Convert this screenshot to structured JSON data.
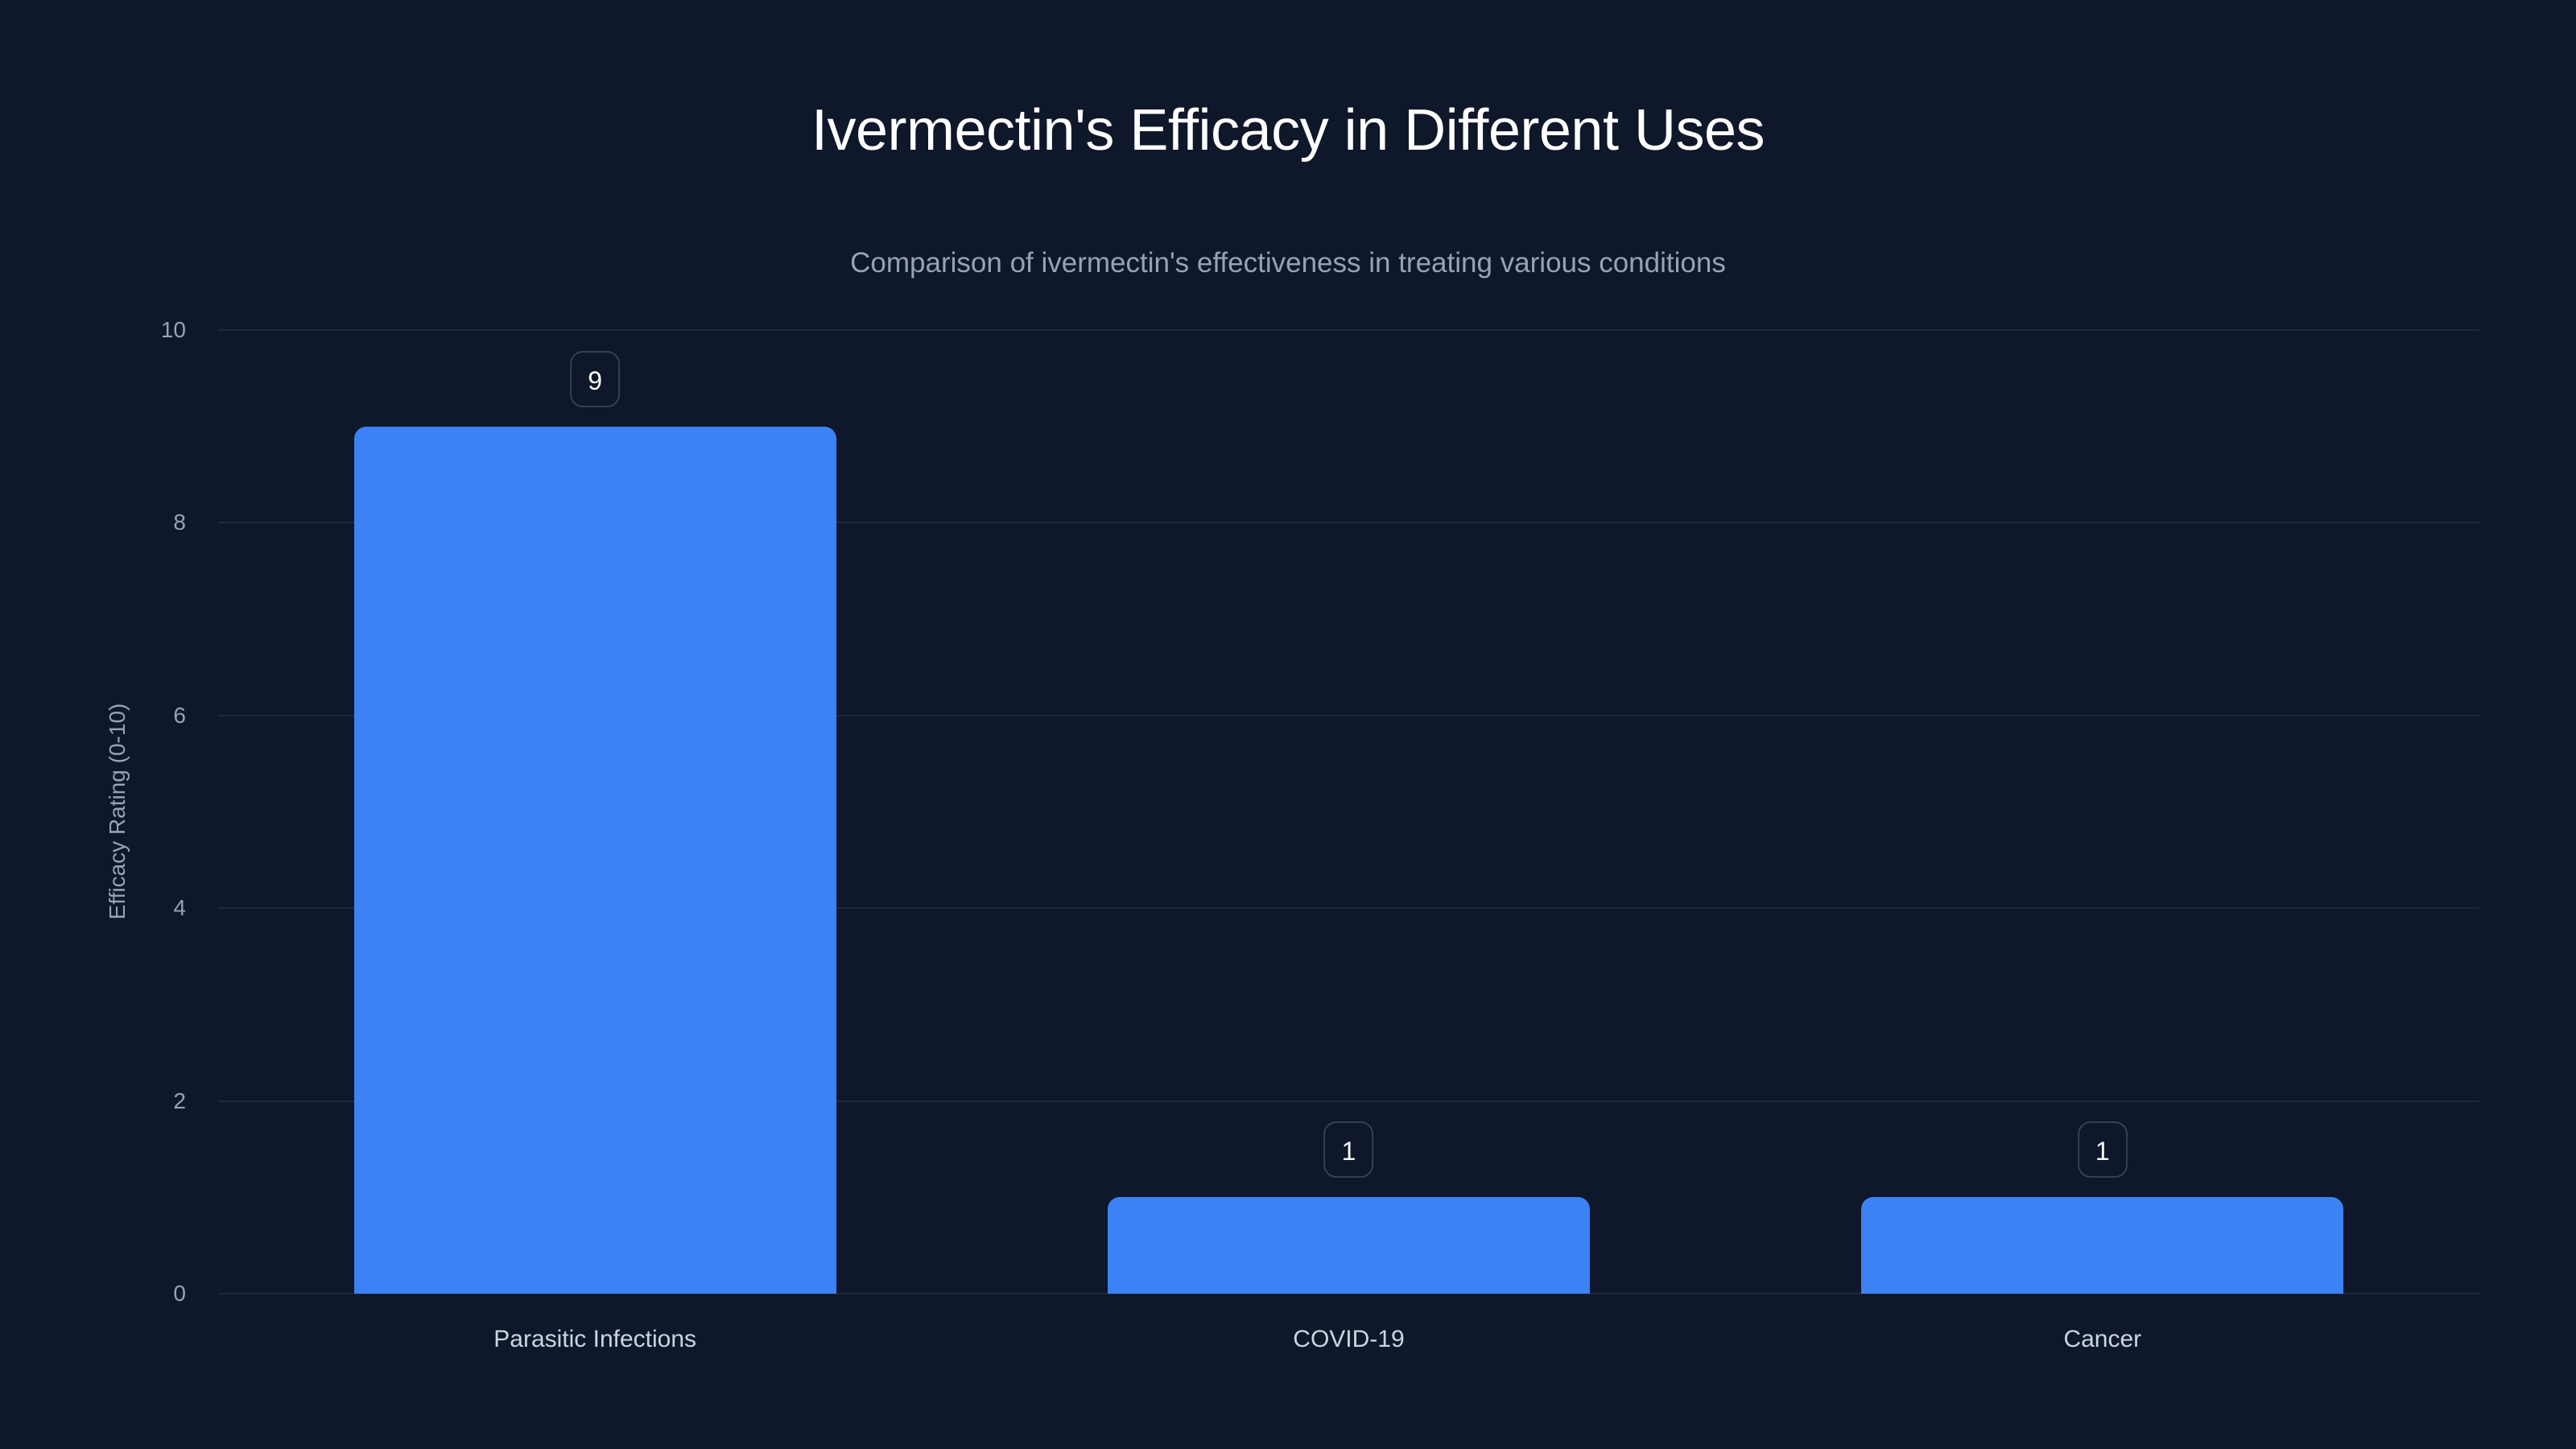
{
  "title": "Ivermectin's Efficacy in Different Uses",
  "subtitle": "Comparison of ivermectin's effectiveness in treating various conditions",
  "colors": {
    "background": "#0f172a",
    "bar": "#3b82f6",
    "grid": "#1e293b",
    "badge_border": "#334155"
  },
  "chart_data": {
    "type": "bar",
    "title": "Ivermectin's Efficacy in Different Uses",
    "subtitle": "Comparison of ivermectin's effectiveness in treating various conditions",
    "categories": [
      "Parasitic Infections",
      "COVID-19",
      "Cancer"
    ],
    "values": [
      9,
      1,
      1
    ],
    "data_labels": [
      "9",
      "1",
      "1"
    ],
    "xlabel": "",
    "ylabel": "Efficacy Rating (0-10)",
    "ylim": [
      0,
      10
    ],
    "yticks": [
      0,
      2,
      4,
      6,
      8,
      10
    ],
    "ytick_labels": [
      "0",
      "2",
      "4",
      "6",
      "8",
      "10"
    ],
    "grid": true,
    "legend": null
  }
}
